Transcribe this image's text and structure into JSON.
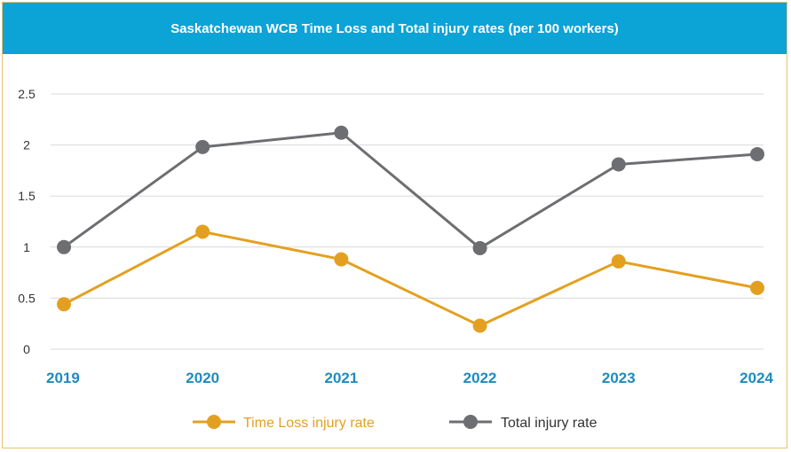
{
  "title": "Saskatchewan WCB Time Loss and Total injury rates (per 100 workers)",
  "colors": {
    "header": "#0ca3d6",
    "time_loss": "#e3a020",
    "total": "#6d6e71",
    "x_tick": "#1f8bbf",
    "border": "#e8c46a"
  },
  "chart_data": {
    "type": "line",
    "x": [
      "2019",
      "2020",
      "2021",
      "2022",
      "2023",
      "2024"
    ],
    "ylim": [
      0,
      2.5
    ],
    "yticks": [
      "0",
      "0.5",
      "1",
      "1.5",
      "2",
      "2.5"
    ],
    "grid": true,
    "legend_position": "bottom",
    "series": [
      {
        "name": "Time Loss injury rate",
        "values": [
          0.44,
          1.15,
          0.88,
          0.23,
          0.86,
          0.6
        ],
        "color": "#e3a020"
      },
      {
        "name": "Total injury rate",
        "values": [
          1.0,
          1.98,
          2.12,
          0.99,
          1.81,
          1.91
        ],
        "color": "#6d6e71"
      }
    ]
  }
}
